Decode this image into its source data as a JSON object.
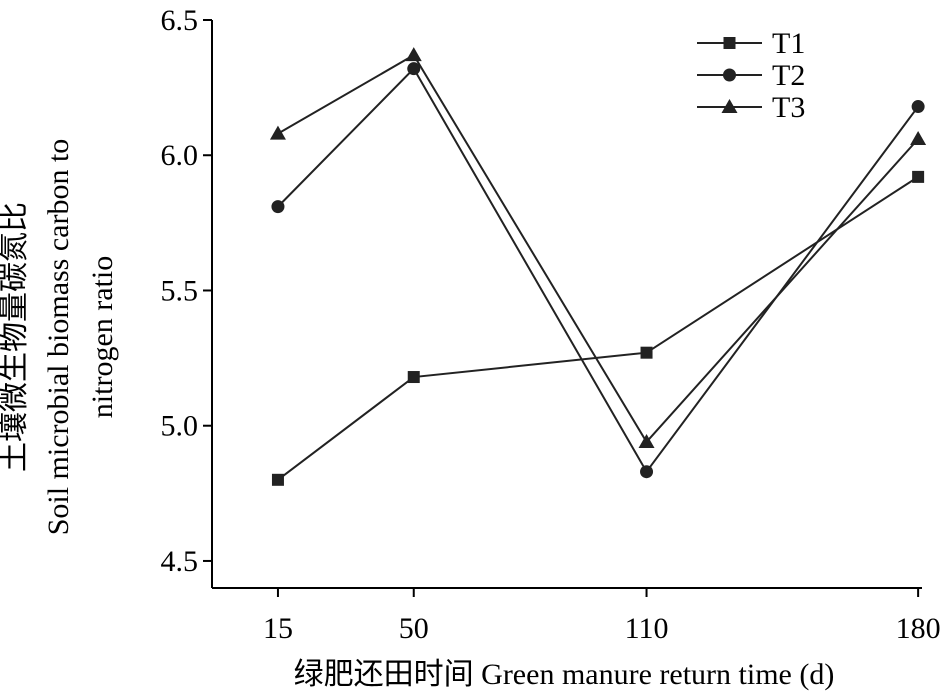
{
  "chart_data": {
    "type": "line",
    "title": "",
    "xlabel": "绿肥还田时间 Green manure return time (d)",
    "ylabel_lines": [
      "土壤微生物量碳氮比",
      "Soil microbial biomass carbon to",
      "nitrogen ratio"
    ],
    "categories": [
      "15",
      "50",
      "110",
      "180"
    ],
    "x": [
      15,
      50,
      110,
      180
    ],
    "xlim": [
      -2,
      181
    ],
    "ylim": [
      4.4,
      6.5
    ],
    "yticks": [
      4.5,
      5.0,
      5.5,
      6.0,
      6.5
    ],
    "ytick_labels": [
      "4.5",
      "5.0",
      "5.5",
      "6.0",
      "6.5"
    ],
    "grid": false,
    "legend_position": "top-right",
    "series": [
      {
        "name": "T1",
        "marker": "square",
        "values": [
          4.8,
          5.18,
          5.27,
          5.92
        ]
      },
      {
        "name": "T2",
        "marker": "circle",
        "values": [
          5.81,
          6.32,
          4.83,
          6.18
        ]
      },
      {
        "name": "T3",
        "marker": "triangle",
        "values": [
          6.08,
          6.37,
          4.94,
          6.06
        ]
      }
    ],
    "colors": {
      "line": "#222222",
      "marker": "#222222",
      "axis": "#000000"
    }
  }
}
